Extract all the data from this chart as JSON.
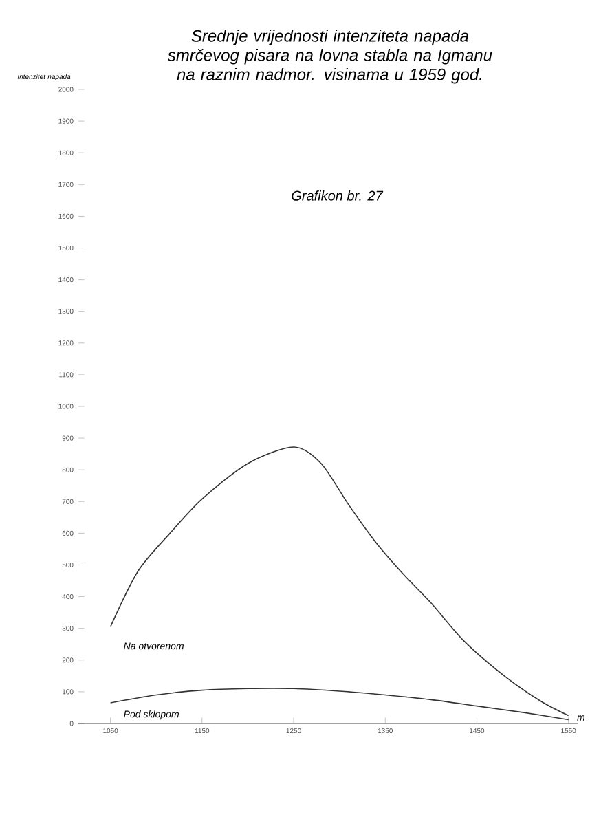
{
  "chart_data": {
    "type": "line",
    "title": "Srednje vrijednosti intenziteta napada smrčevog pisara na lovna stabla na Igmanu na raznim nadmor. visinama u 1959 god.",
    "subtitle": "Grafikon br. 27",
    "xlabel": "m",
    "ylabel": "Intenzitet napada",
    "xlim": [
      1015,
      1560
    ],
    "ylim": [
      0,
      2000
    ],
    "xticks": [
      1050,
      1150,
      1250,
      1350,
      1450,
      1550
    ],
    "yticks": [
      0,
      100,
      200,
      300,
      400,
      500,
      600,
      700,
      800,
      900,
      1000,
      1100,
      1200,
      1300,
      1400,
      1500,
      1600,
      1700,
      1800,
      1900,
      2000
    ],
    "grid": false,
    "legend": false,
    "marker": "none",
    "line_style": "solid",
    "series": [
      {
        "name": "Na otvorenom",
        "color": "#333333",
        "x": [
          1050,
          1080,
          1115,
          1150,
          1200,
          1250,
          1280,
          1310,
          1340,
          1370,
          1400,
          1436,
          1480,
          1520,
          1550
        ],
        "values": [
          305,
          480,
          600,
          708,
          820,
          872,
          820,
          690,
          570,
          470,
          380,
          260,
          150,
          70,
          25
        ]
      },
      {
        "name": "Pod sklopom",
        "color": "#333333",
        "x": [
          1050,
          1100,
          1150,
          1200,
          1250,
          1300,
          1350,
          1400,
          1450,
          1500,
          1550
        ],
        "values": [
          65,
          90,
          105,
          110,
          110,
          102,
          90,
          75,
          55,
          35,
          12
        ]
      }
    ]
  }
}
